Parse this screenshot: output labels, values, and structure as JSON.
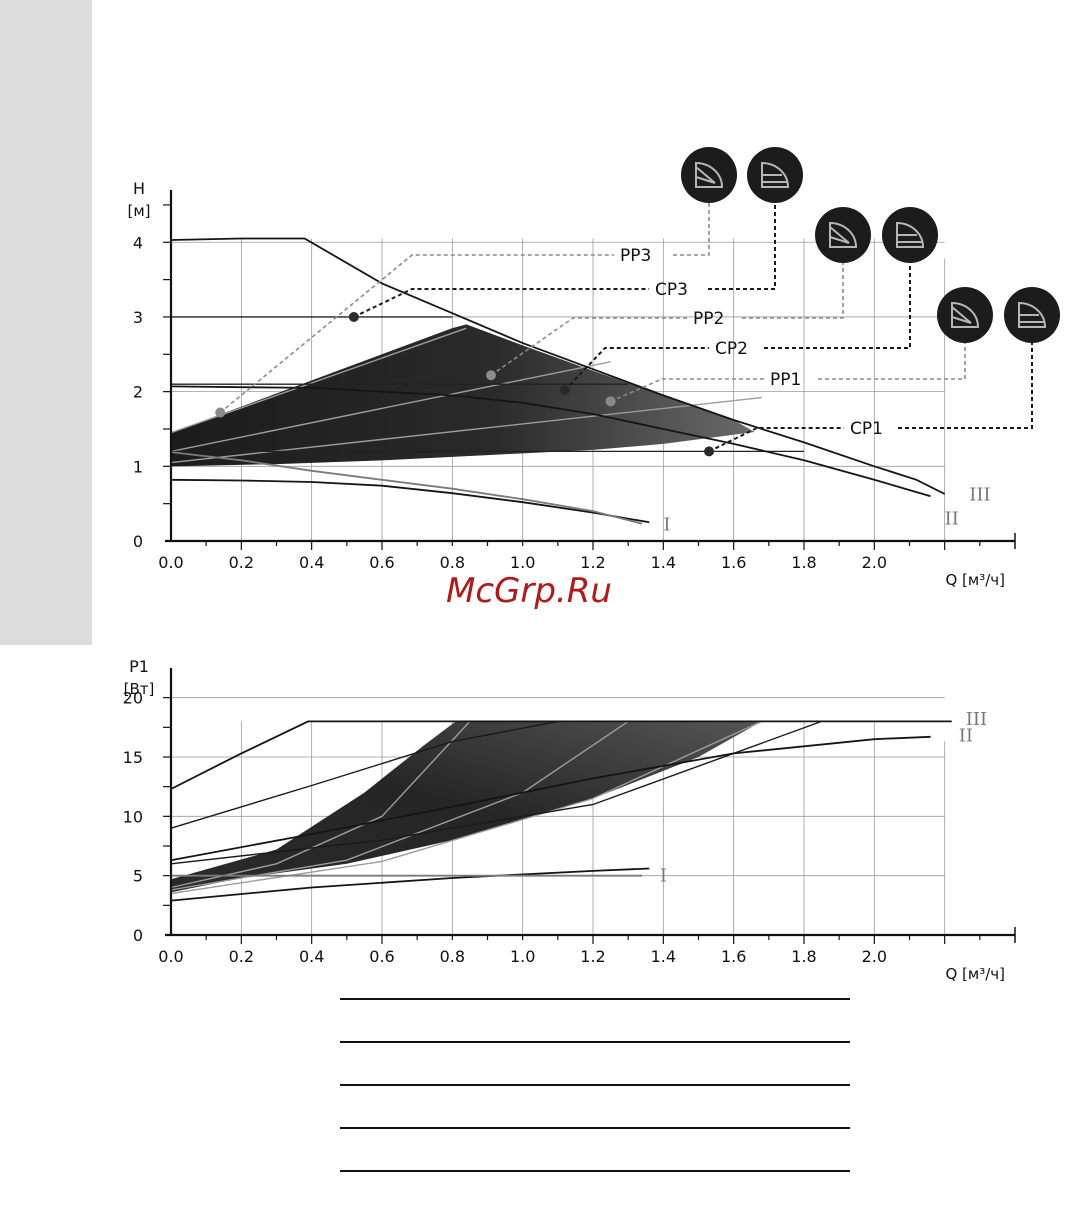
{
  "watermark": "McGrp.Ru",
  "legend_icons": [
    {
      "name": "proportional-pressure-icon"
    },
    {
      "name": "constant-pressure-icon"
    }
  ],
  "chart_data": [
    {
      "type": "line",
      "ylabel": "H",
      "yunit": "[м]",
      "xlabel": "Q [м³/ч]",
      "xlim": [
        0,
        2.4
      ],
      "ylim": [
        0,
        4.7
      ],
      "xticks": [
        "0.0",
        "0.2",
        "0.4",
        "0.6",
        "0.8",
        "1.0",
        "1.2",
        "1.4",
        "1.6",
        "1.8",
        "2.0"
      ],
      "yticks": [
        "0",
        "1",
        "2",
        "3",
        "4"
      ],
      "grid": true,
      "operating_range_shaded": true,
      "callouts": [
        {
          "label": "PP3",
          "style": "dashed-grey",
          "point": [
            0.14,
            1.72
          ],
          "mode": "proportional"
        },
        {
          "label": "CP3",
          "style": "dashed-dark",
          "point": [
            0.52,
            3.0
          ],
          "mode": "constant"
        },
        {
          "label": "PP2",
          "style": "dashed-grey",
          "point": [
            0.91,
            2.22
          ],
          "mode": "proportional"
        },
        {
          "label": "CP2",
          "style": "dashed-dark",
          "point": [
            1.12,
            2.02
          ],
          "mode": "constant"
        },
        {
          "label": "PP1",
          "style": "dashed-grey",
          "point": [
            1.25,
            1.87
          ],
          "mode": "proportional"
        },
        {
          "label": "CP1",
          "style": "dashed-dark",
          "point": [
            1.53,
            1.2
          ],
          "mode": "constant"
        }
      ],
      "series": [
        {
          "label": "III",
          "x": [
            0,
            0.2,
            0.38,
            0.6,
            0.8,
            1.0,
            1.2,
            1.4,
            1.6,
            1.8,
            2.0,
            2.12,
            2.2
          ],
          "y": [
            4.03,
            4.05,
            4.05,
            3.45,
            3.05,
            2.65,
            2.3,
            1.95,
            1.62,
            1.32,
            1.0,
            0.82,
            0.63
          ]
        },
        {
          "label": "II",
          "x": [
            0,
            0.2,
            0.4,
            0.6,
            0.8,
            1.0,
            1.2,
            1.4,
            1.6,
            1.8,
            2.0,
            2.16
          ],
          "y": [
            2.07,
            2.06,
            2.05,
            2.0,
            1.95,
            1.85,
            1.7,
            1.5,
            1.3,
            1.08,
            0.82,
            0.6
          ]
        },
        {
          "label": "I",
          "x": [
            0,
            0.2,
            0.4,
            0.6,
            0.8,
            1.0,
            1.2,
            1.36
          ],
          "y": [
            0.82,
            0.81,
            0.79,
            0.74,
            0.64,
            0.52,
            0.38,
            0.25
          ]
        },
        {
          "x": [
            0,
            0.2,
            0.4,
            0.6,
            0.8,
            1.0,
            1.2,
            1.34
          ],
          "y": [
            1.19,
            1.08,
            0.94,
            0.82,
            0.7,
            0.56,
            0.4,
            0.23
          ]
        }
      ],
      "constant_lines": [
        {
          "y": 3.0,
          "x": [
            0,
            0.8
          ]
        },
        {
          "y": 2.1,
          "x": [
            0,
            1.3
          ]
        },
        {
          "y": 1.2,
          "x": [
            0,
            1.8
          ]
        }
      ],
      "proportional_lines": [
        {
          "x": [
            0,
            0.84
          ],
          "y": [
            1.45,
            2.85
          ]
        },
        {
          "x": [
            0,
            1.25
          ],
          "y": [
            1.2,
            2.4
          ]
        },
        {
          "x": [
            0,
            1.68
          ],
          "y": [
            1.05,
            1.92
          ]
        }
      ],
      "curve_labels": [
        "III",
        "II",
        "I"
      ]
    },
    {
      "type": "line",
      "ylabel": "P1",
      "yunit": "[Вт]",
      "xlabel": "Q [м³/ч]",
      "xlim": [
        0,
        2.4
      ],
      "ylim": [
        0,
        22.5
      ],
      "xticks": [
        "0.0",
        "0.2",
        "0.4",
        "0.6",
        "0.8",
        "1.0",
        "1.2",
        "1.4",
        "1.6",
        "1.8",
        "2.0"
      ],
      "yticks": [
        "0",
        "5",
        "10",
        "15",
        "20"
      ],
      "grid": true,
      "operating_range_shaded": true,
      "series": [
        {
          "label": "III",
          "x": [
            0,
            0.2,
            0.39,
            2.22
          ],
          "y": [
            12.3,
            15.3,
            18.0,
            18.0
          ]
        },
        {
          "label": "II",
          "x": [
            0,
            0.4,
            0.8,
            1.2,
            1.6,
            2.0,
            2.16
          ],
          "y": [
            6.3,
            8.5,
            10.8,
            13.2,
            15.3,
            16.5,
            16.7
          ]
        },
        {
          "label": "I",
          "x": [
            0,
            0.4,
            0.8,
            1.2,
            1.36
          ],
          "y": [
            2.9,
            4.0,
            4.8,
            5.4,
            5.6
          ]
        },
        {
          "x": [
            0,
            1.34
          ],
          "y": [
            5.0,
            5.0
          ]
        }
      ],
      "proportional_lines": [
        {
          "x": [
            0,
            0.3,
            0.6,
            0.85
          ],
          "y": [
            4.0,
            6.0,
            10.0,
            18.0
          ]
        },
        {
          "x": [
            0,
            0.5,
            1.0,
            1.3
          ],
          "y": [
            3.8,
            6.3,
            12.0,
            18.0
          ]
        },
        {
          "x": [
            0,
            0.6,
            1.2,
            1.68
          ],
          "y": [
            3.5,
            6.2,
            11.5,
            18.0
          ]
        }
      ],
      "range_lines": [
        {
          "x": [
            0,
            0.4,
            0.8,
            1.1
          ],
          "y": [
            9.0,
            12.6,
            16.3,
            18.0
          ]
        },
        {
          "x": [
            0,
            0.6,
            1.2,
            1.85
          ],
          "y": [
            6.0,
            8.0,
            11.0,
            18.0
          ]
        }
      ],
      "curve_labels": [
        "III",
        "II",
        "I"
      ]
    }
  ]
}
